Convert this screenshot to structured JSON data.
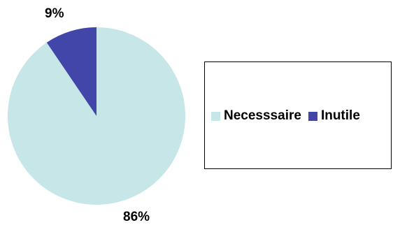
{
  "chart_data": {
    "type": "pie",
    "categories": [
      "Necesssaire",
      "Inutile"
    ],
    "values": [
      86,
      9
    ],
    "labels": [
      "86%",
      "9%"
    ],
    "colors": [
      "#c6e6e8",
      "#4246a8"
    ],
    "legend_position": "right"
  }
}
